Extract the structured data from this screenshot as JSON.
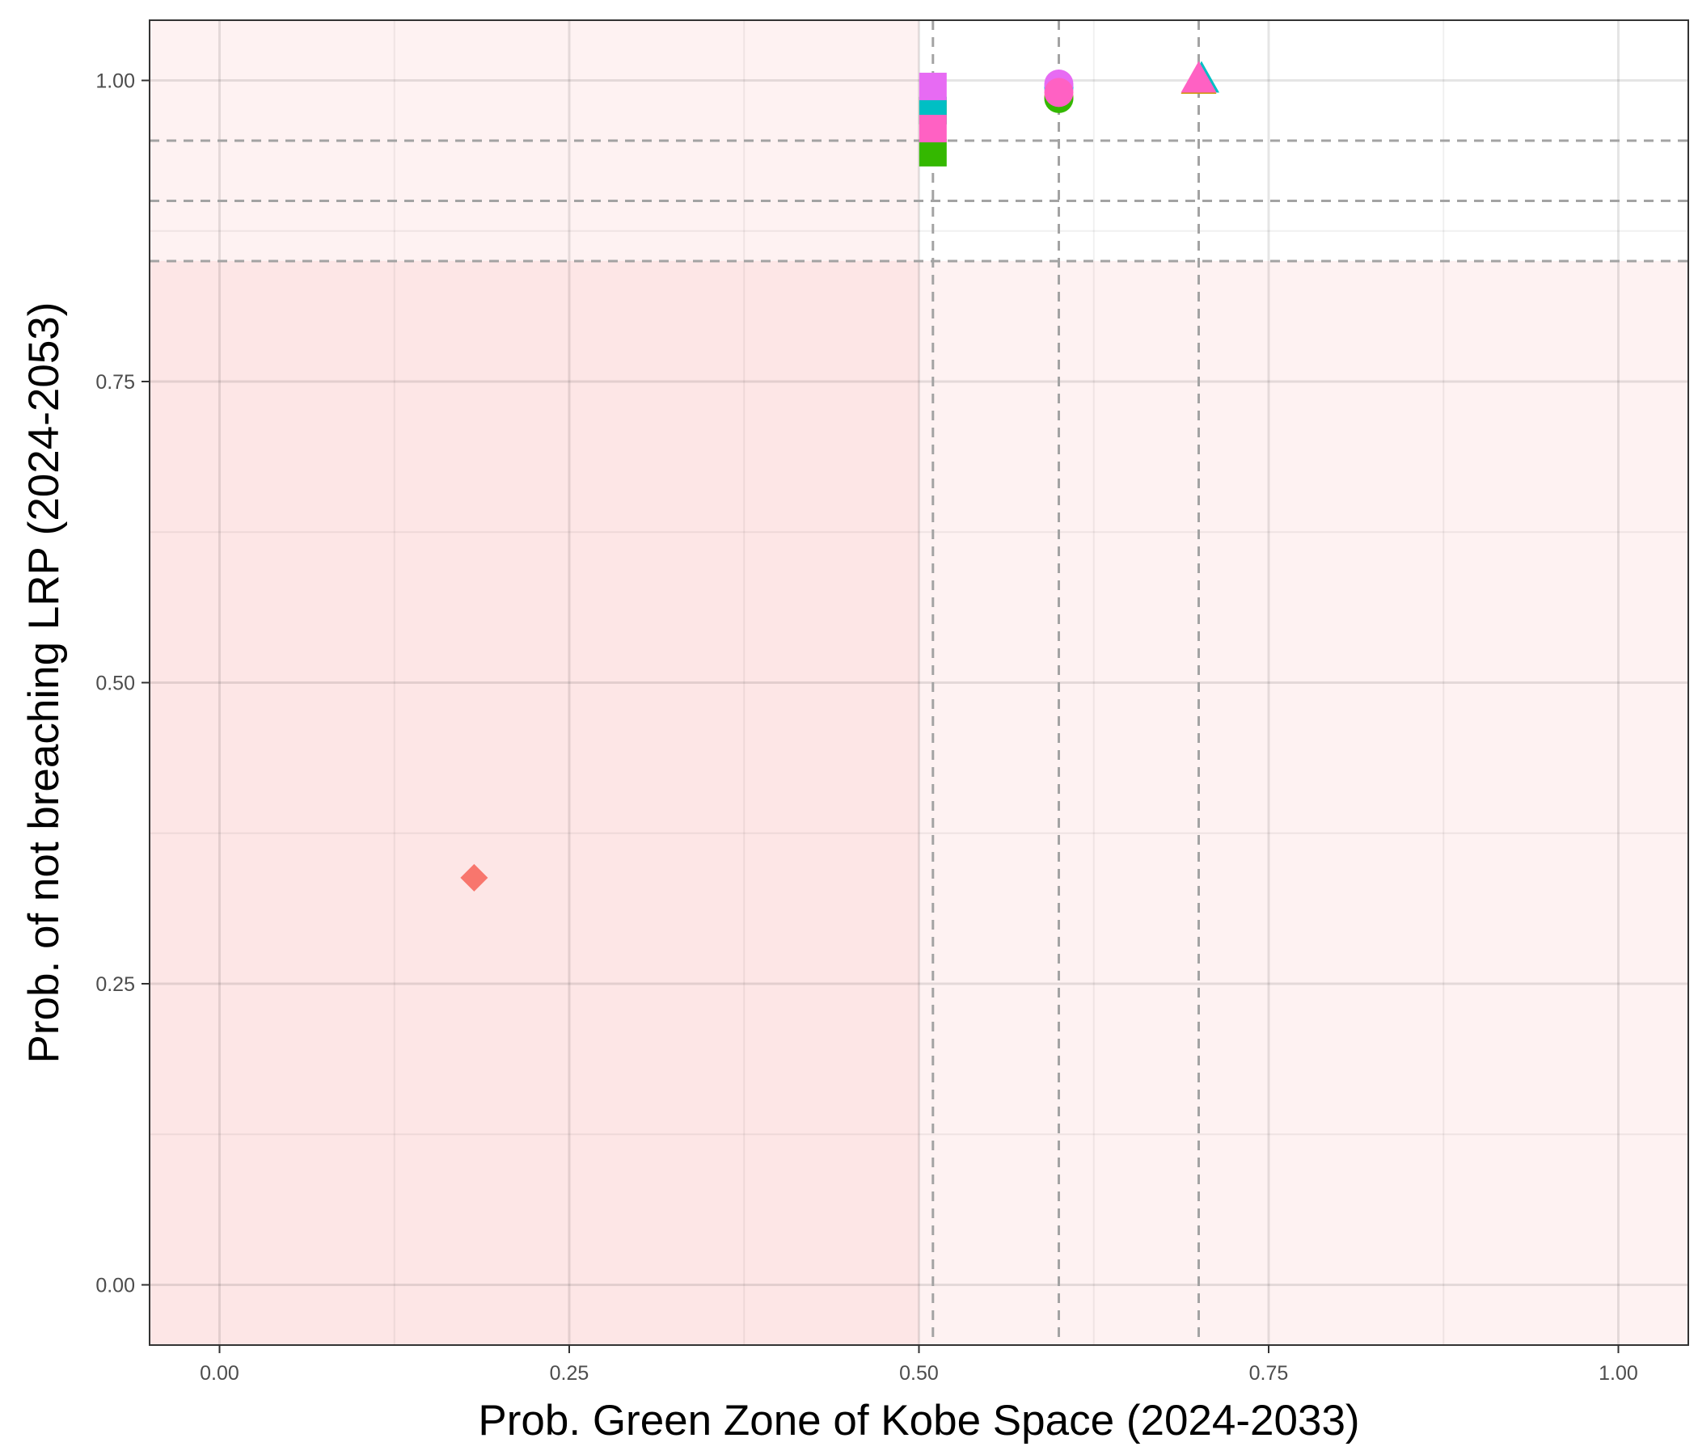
{
  "chart_data": {
    "type": "scatter",
    "title": "",
    "xlabel": "Prob. Green Zone of Kobe Space (2024-2033)",
    "ylabel": "Prob. of not breaching LRP (2024-2053)",
    "xlim": [
      -0.05,
      1.05
    ],
    "ylim": [
      -0.05,
      1.05
    ],
    "x_ticks": [
      "0.00",
      "0.25",
      "0.50",
      "0.75",
      "1.00"
    ],
    "y_ticks": [
      "0.00",
      "0.25",
      "0.50",
      "0.75",
      "1.00"
    ],
    "x_tick_values": [
      0,
      0.25,
      0.5,
      0.75,
      1.0
    ],
    "y_tick_values": [
      0,
      0.25,
      0.5,
      0.75,
      1.0
    ],
    "grid": true,
    "legend": "none",
    "reference_lines": {
      "vertical": [
        0.51,
        0.6,
        0.7
      ],
      "horizontal": [
        0.85,
        0.9,
        0.95
      ]
    },
    "shaded_regions": [
      {
        "x": [
          -0.05,
          0.5
        ],
        "y": [
          -0.05,
          0.85
        ],
        "color": "#fde6e6"
      },
      {
        "x": [
          -0.05,
          0.5
        ],
        "y": [
          0.85,
          1.05
        ],
        "color": "#fef2f2"
      },
      {
        "x": [
          0.5,
          1.05
        ],
        "y": [
          -0.05,
          0.85
        ],
        "color": "#fef2f2"
      }
    ],
    "points": [
      {
        "x": 0.182,
        "y": 0.338,
        "shape": "diamond",
        "color": "#F8766D"
      },
      {
        "x": 0.51,
        "y": 0.975,
        "shape": "square",
        "color": "#CD9600"
      },
      {
        "x": 0.51,
        "y": 0.94,
        "shape": "square",
        "color": "#34B800"
      },
      {
        "x": 0.51,
        "y": 0.975,
        "shape": "square",
        "color": "#00BFC4"
      },
      {
        "x": 0.51,
        "y": 0.995,
        "shape": "square",
        "color": "#E76BF3"
      },
      {
        "x": 0.51,
        "y": 0.96,
        "shape": "square",
        "color": "#FF61C3"
      },
      {
        "x": 0.6,
        "y": 0.986,
        "shape": "circle",
        "color": "#CD9600"
      },
      {
        "x": 0.6,
        "y": 0.985,
        "shape": "circle",
        "color": "#34B800"
      },
      {
        "x": 0.6,
        "y": 0.994,
        "shape": "circle",
        "color": "#00A9FF"
      },
      {
        "x": 0.6,
        "y": 0.997,
        "shape": "circle",
        "color": "#E76BF3"
      },
      {
        "x": 0.6,
        "y": 0.99,
        "shape": "circle",
        "color": "#FF61C3"
      },
      {
        "x": 0.7,
        "y": 0.999,
        "shape": "triangle",
        "color": "#CD9600"
      },
      {
        "x": 0.702,
        "y": 1.0,
        "shape": "triangle",
        "color": "#00BFC4"
      },
      {
        "x": 0.7,
        "y": 1.0,
        "shape": "triangle",
        "color": "#FF61C3"
      }
    ]
  }
}
